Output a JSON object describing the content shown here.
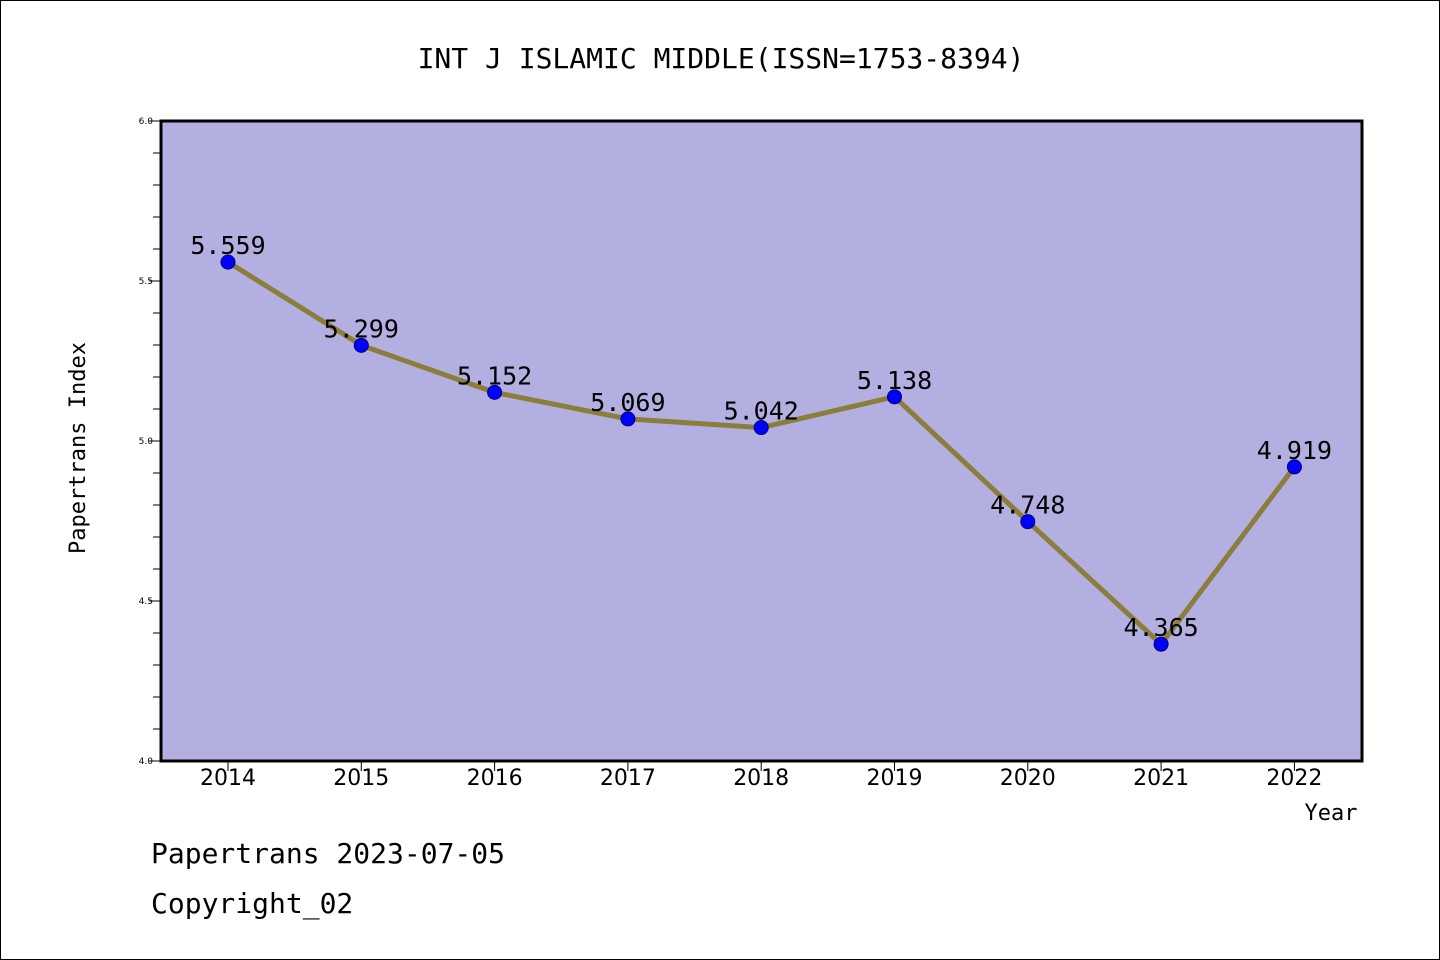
{
  "chart_data": {
    "type": "line",
    "title": "INT J ISLAMIC MIDDLE(ISSN=1753-8394)",
    "xlabel": "Year",
    "ylabel": "Papertrans Index",
    "categories": [
      "2014",
      "2015",
      "2016",
      "2017",
      "2018",
      "2019",
      "2020",
      "2021",
      "2022"
    ],
    "series": [
      {
        "values": [
          5.559,
          5.299,
          5.152,
          5.069,
          5.042,
          5.138,
          4.748,
          4.365,
          4.919
        ],
        "labels": [
          "5.559",
          "5.299",
          "5.152",
          "5.069",
          "5.042",
          "5.138",
          "4.748",
          "4.365",
          "4.919"
        ],
        "line_color": "#8b7d3a",
        "marker_color": "#0000ff"
      }
    ],
    "ylim": [
      4.0,
      6.0
    ],
    "yticks": [
      "4.0",
      "4.5",
      "5.0",
      "5.5",
      "6.0"
    ],
    "plot_background": "#b4afe1",
    "grid": false
  },
  "footer": {
    "line1": "Papertrans 2023-07-05",
    "line2": "Copyright_02"
  }
}
